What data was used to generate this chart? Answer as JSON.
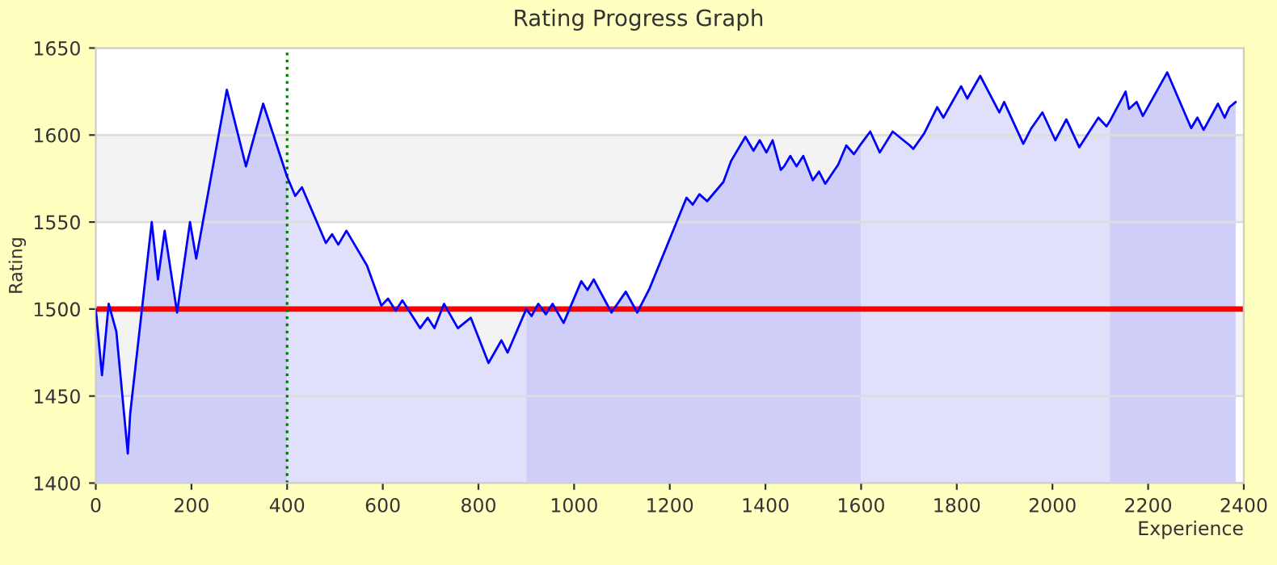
{
  "chart_data": {
    "type": "line",
    "title": "Rating Progress Graph",
    "xlabel": "Experience",
    "ylabel": "Rating",
    "x": [
      0,
      13,
      27,
      43,
      67,
      72,
      117,
      130,
      144,
      170,
      197,
      210,
      274,
      314,
      350,
      400,
      417,
      431,
      481,
      494,
      507,
      524,
      567,
      597,
      611,
      627,
      641,
      678,
      694,
      708,
      728,
      757,
      784,
      821,
      848,
      861,
      900,
      911,
      925,
      941,
      955,
      978,
      1015,
      1028,
      1041,
      1078,
      1108,
      1132,
      1158,
      1235,
      1248,
      1262,
      1278,
      1312,
      1328,
      1358,
      1375,
      1388,
      1402,
      1415,
      1432,
      1439,
      1452,
      1465,
      1479,
      1499,
      1512,
      1525,
      1552,
      1569,
      1585,
      1600,
      1619,
      1639,
      1666,
      1702,
      1709,
      1732,
      1759,
      1772,
      1809,
      1822,
      1849,
      1889,
      1899,
      1939,
      1956,
      1979,
      2006,
      2029,
      2056,
      2096,
      2113,
      2120,
      2153,
      2160,
      2176,
      2189,
      2240,
      2290,
      2303,
      2316,
      2346,
      2360,
      2370,
      2383
    ],
    "series": [
      {
        "color": "#0000ff",
        "values": [
          1500,
          1462,
          1503,
          1487,
          1417,
          1440,
          1550,
          1517,
          1545,
          1498,
          1550,
          1529,
          1626,
          1582,
          1618,
          1576,
          1565,
          1570,
          1538,
          1543,
          1537,
          1545,
          1525,
          1502,
          1506,
          1499,
          1505,
          1489,
          1495,
          1489,
          1503,
          1489,
          1495,
          1469,
          1482,
          1475,
          1500,
          1496,
          1503,
          1497,
          1503,
          1492,
          1516,
          1511,
          1517,
          1498,
          1510,
          1498,
          1512,
          1564,
          1560,
          1566,
          1562,
          1573,
          1585,
          1599,
          1591,
          1597,
          1590,
          1597,
          1580,
          1582,
          1588,
          1582,
          1588,
          1574,
          1579,
          1572,
          1583,
          1594,
          1589,
          1595,
          1602,
          1590,
          1602,
          1594,
          1592,
          1601,
          1616,
          1610,
          1628,
          1621,
          1634,
          1613,
          1619,
          1595,
          1604,
          1613,
          1597,
          1609,
          1593,
          1610,
          1605,
          1608,
          1625,
          1615,
          1619,
          1611,
          1636,
          1604,
          1610,
          1603,
          1618,
          1610,
          1616,
          1619
        ]
      },
      {
        "type": "area",
        "color": "#cecef9",
        "x": [
          0,
          13,
          27,
          43,
          67,
          72,
          117,
          130,
          144,
          170,
          197,
          210,
          274,
          314,
          350,
          400
        ],
        "values": [
          1500,
          1462,
          1503,
          1487,
          1417,
          1440,
          1550,
          1517,
          1545,
          1498,
          1550,
          1529,
          1626,
          1582,
          1618,
          1576
        ]
      },
      {
        "type": "area",
        "color": "#e0e0fb",
        "x": [
          400,
          417,
          431,
          481,
          494,
          507,
          524,
          567,
          597,
          611,
          627,
          641,
          678,
          694,
          708,
          728,
          757,
          784,
          821,
          848,
          861,
          900
        ],
        "values": [
          1576,
          1565,
          1570,
          1538,
          1543,
          1537,
          1545,
          1525,
          1502,
          1506,
          1499,
          1505,
          1489,
          1495,
          1489,
          1503,
          1489,
          1495,
          1469,
          1482,
          1475,
          1500
        ]
      },
      {
        "type": "area",
        "color": "#cecef9",
        "x": [
          900,
          911,
          925,
          941,
          955,
          978,
          1015,
          1028,
          1041,
          1078,
          1108,
          1132,
          1158,
          1235,
          1248,
          1262,
          1278,
          1312,
          1328,
          1358,
          1375,
          1388,
          1402,
          1415,
          1432,
          1439,
          1452,
          1465,
          1479,
          1499,
          1512,
          1525,
          1552,
          1569,
          1585,
          1600
        ],
        "values": [
          1500,
          1496,
          1503,
          1497,
          1503,
          1492,
          1516,
          1511,
          1517,
          1498,
          1510,
          1498,
          1512,
          1564,
          1560,
          1566,
          1562,
          1573,
          1585,
          1599,
          1591,
          1597,
          1590,
          1597,
          1580,
          1582,
          1588,
          1582,
          1588,
          1574,
          1579,
          1572,
          1583,
          1594,
          1589,
          1595
        ]
      },
      {
        "type": "area",
        "color": "#e0e0fb",
        "x": [
          1600,
          1619,
          1639,
          1666,
          1702,
          1709,
          1732,
          1759,
          1772,
          1809,
          1822,
          1849,
          1889,
          1899,
          1939,
          1956,
          1979,
          2006,
          2029,
          2056,
          2096,
          2113,
          2120
        ],
        "values": [
          1595,
          1602,
          1590,
          1602,
          1594,
          1592,
          1601,
          1616,
          1610,
          1628,
          1621,
          1634,
          1613,
          1619,
          1595,
          1604,
          1613,
          1597,
          1609,
          1593,
          1610,
          1605,
          1608
        ]
      },
      {
        "type": "area",
        "color": "#cecef9",
        "x": [
          2120,
          2153,
          2160,
          2176,
          2189,
          2240,
          2290,
          2303,
          2316,
          2346,
          2360,
          2370,
          2383
        ],
        "values": [
          1608,
          1625,
          1615,
          1619,
          1611,
          1636,
          1604,
          1610,
          1603,
          1618,
          1610,
          1616,
          1619
        ]
      }
    ],
    "xlim": [
      0,
      2400
    ],
    "ylim": [
      1400,
      1650
    ],
    "xticks": [
      0,
      200,
      400,
      600,
      800,
      1000,
      1200,
      1400,
      1600,
      1800,
      2000,
      2200,
      2400
    ],
    "yticks": [
      1400,
      1450,
      1500,
      1550,
      1600,
      1650
    ],
    "grid": "y",
    "marker": "none",
    "line_style": "solid",
    "ref_lines": [
      {
        "axis": "y",
        "value": 1500,
        "color": "#ff0000",
        "line_style": "solid"
      },
      {
        "axis": "x",
        "value": 400,
        "color": "#008000",
        "line_style": "dotted"
      }
    ],
    "bands": [
      {
        "axis": "y",
        "from": 1450,
        "to": 1500,
        "color": "#f3f3f3"
      },
      {
        "axis": "y",
        "from": 1550,
        "to": 1600,
        "color": "#f3f3f3"
      }
    ]
  }
}
